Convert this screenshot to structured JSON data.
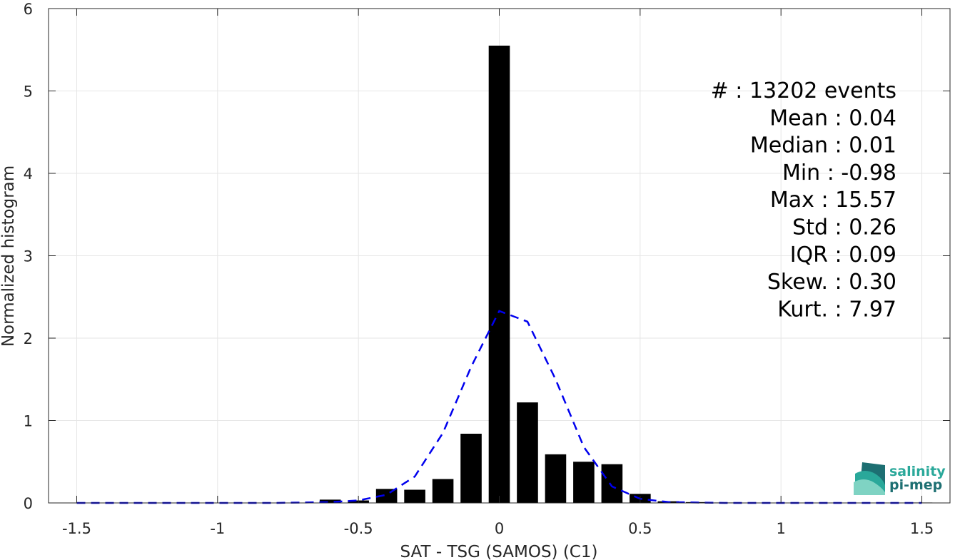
{
  "chart_data": {
    "type": "bar",
    "xlabel": "SAT - TSG (SAMOS) (C1)",
    "ylabel": "Normalized histogram",
    "xlim": [
      -1.6,
      1.6
    ],
    "ylim": [
      0,
      6
    ],
    "xticks": [
      -1.5,
      -1,
      -0.5,
      0,
      0.5,
      1,
      1.5
    ],
    "xtick_labels": [
      "-1.5",
      "-1",
      "-0.5",
      "0",
      "0.5",
      "1",
      "1.5"
    ],
    "yticks": [
      0,
      1,
      2,
      3,
      4,
      5,
      6
    ],
    "ytick_labels": [
      "0",
      "1",
      "2",
      "3",
      "4",
      "5",
      "6"
    ],
    "grid": true,
    "bar_width": 0.075,
    "bars": {
      "x": [
        -0.6,
        -0.5,
        -0.4,
        -0.3,
        -0.2,
        -0.1,
        0.0,
        0.1,
        0.2,
        0.3,
        0.4,
        0.5,
        0.6,
        0.7,
        0.8,
        1.5
      ],
      "values": [
        0.04,
        0.03,
        0.17,
        0.16,
        0.29,
        0.84,
        5.55,
        1.22,
        0.59,
        0.5,
        0.47,
        0.11,
        0.02,
        0.01,
        0.005,
        0.005
      ],
      "color": "#000000"
    },
    "fit_curve": {
      "style": "dashed",
      "color": "#0000ee",
      "x": [
        -1.5,
        -1.4,
        -1.3,
        -1.2,
        -1.1,
        -1.0,
        -0.9,
        -0.8,
        -0.7,
        -0.6,
        -0.5,
        -0.4,
        -0.3,
        -0.2,
        -0.1,
        0.0,
        0.1,
        0.2,
        0.3,
        0.4,
        0.5,
        0.6,
        0.7,
        0.8,
        0.9,
        1.0,
        1.1,
        1.2,
        1.3,
        1.4,
        1.5
      ],
      "y": [
        0,
        0,
        0,
        0,
        0,
        0,
        0,
        0,
        0.005,
        0.01,
        0.03,
        0.1,
        0.32,
        0.85,
        1.65,
        2.33,
        2.2,
        1.5,
        0.68,
        0.2,
        0.05,
        0.01,
        0.005,
        0,
        0,
        0,
        0,
        0,
        0,
        0,
        0
      ]
    },
    "stats": [
      "#  : 13202 events",
      "Mean : 0.04",
      "Median : 0.01",
      "Min : -0.98",
      "Max : 15.57",
      "Std : 0.26",
      "IQR : 0.09",
      "Skew. : 0.30",
      "Kurt. : 7.97"
    ]
  },
  "logo": {
    "line1": "salinity",
    "line2": "pi-mep",
    "color_primary": "#2aa89a",
    "color_dark": "#1d6f72"
  }
}
